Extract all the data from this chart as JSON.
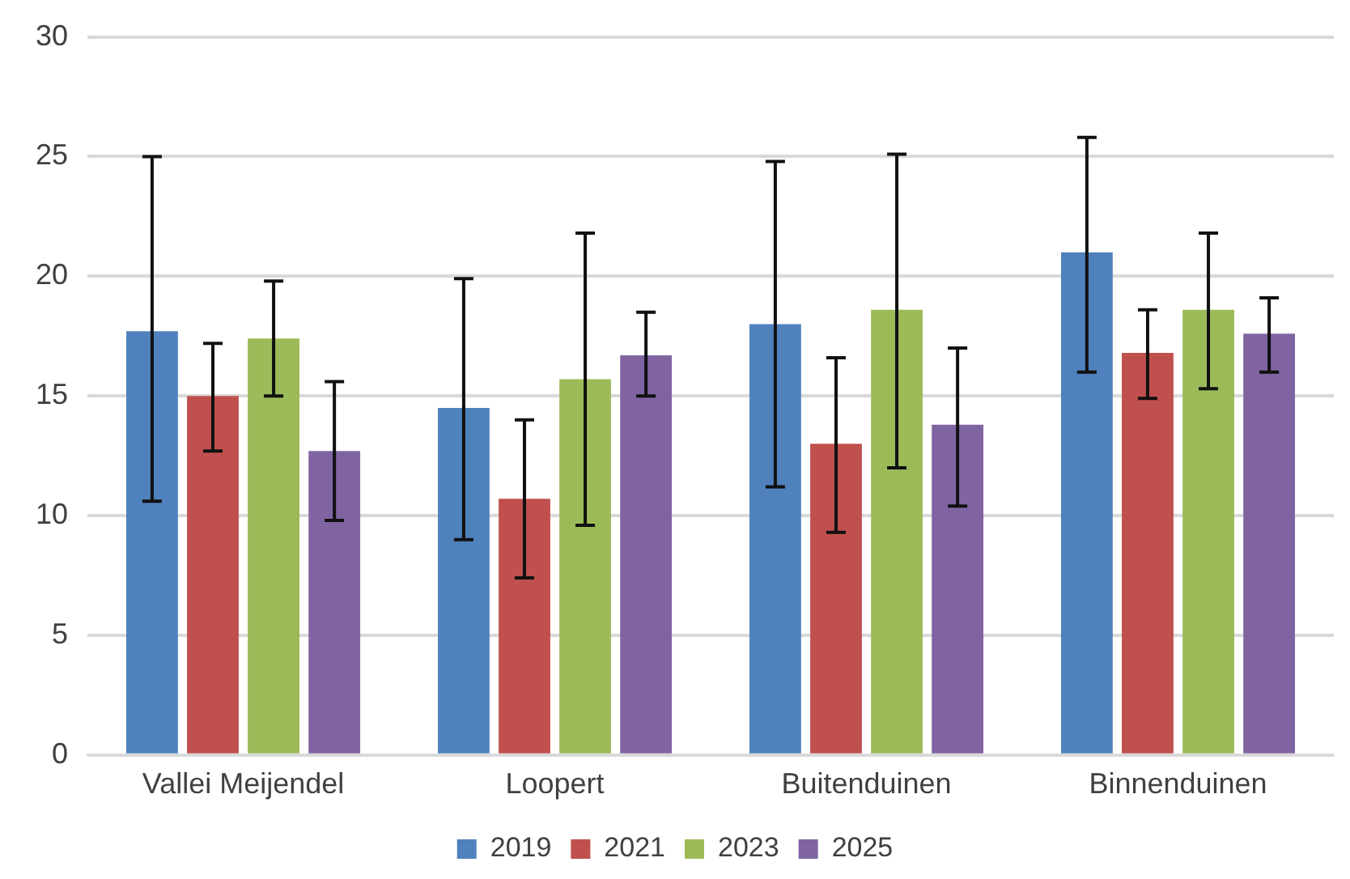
{
  "chart_data": {
    "type": "bar",
    "categories": [
      "Vallei Meijendel",
      "Loopert",
      "Buitenduinen",
      "Binnenduinen"
    ],
    "series": [
      {
        "name": "2019",
        "color": "#4f81bd",
        "values": [
          17.7,
          14.5,
          18.0,
          21.0
        ],
        "errors": [
          [
            10.6,
            25.0
          ],
          [
            9.0,
            19.9
          ],
          [
            11.2,
            24.8
          ],
          [
            16.0,
            25.8
          ]
        ]
      },
      {
        "name": "2021",
        "color": "#c0504d",
        "values": [
          15.0,
          10.7,
          13.0,
          16.8
        ],
        "errors": [
          [
            12.7,
            17.2
          ],
          [
            7.4,
            14.0
          ],
          [
            9.3,
            16.6
          ],
          [
            14.9,
            18.6
          ]
        ]
      },
      {
        "name": "2023",
        "color": "#9bbb59",
        "values": [
          17.4,
          15.7,
          18.6,
          18.6
        ],
        "errors": [
          [
            15.0,
            19.8
          ],
          [
            9.6,
            21.8
          ],
          [
            12.0,
            25.1
          ],
          [
            15.3,
            21.8
          ]
        ]
      },
      {
        "name": "2025",
        "color": "#8064a2",
        "values": [
          12.7,
          16.7,
          13.8,
          17.6
        ],
        "errors": [
          [
            9.8,
            15.6
          ],
          [
            15.0,
            18.5
          ],
          [
            10.4,
            17.0
          ],
          [
            16.0,
            19.1
          ]
        ]
      }
    ],
    "ylim": [
      0,
      30
    ],
    "yticks": [
      0,
      5,
      10,
      15,
      20,
      25,
      30
    ],
    "grid": "y",
    "legend": "bottom"
  }
}
